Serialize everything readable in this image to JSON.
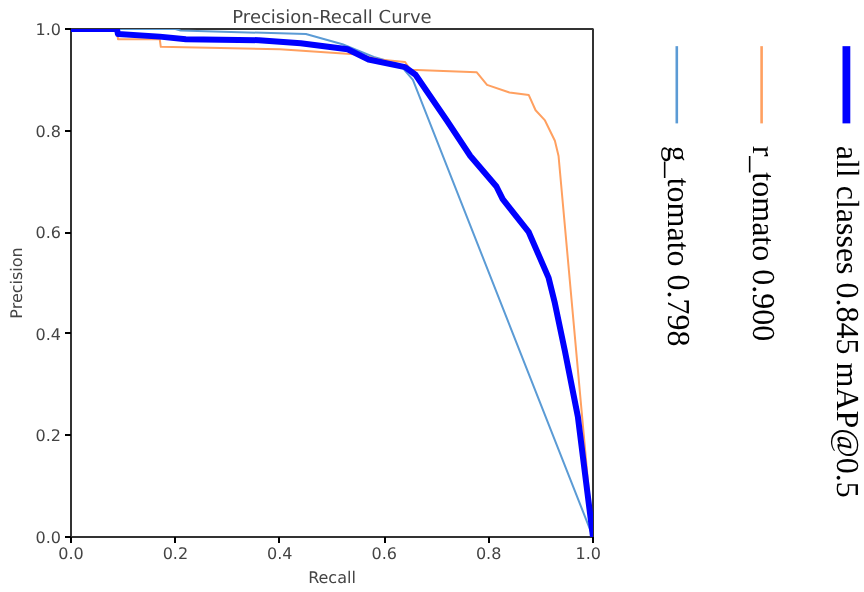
{
  "chart_data": {
    "type": "line",
    "title": "Precision-Recall Curve",
    "xlabel": "Recall",
    "ylabel": "Precision",
    "xlim": [
      0,
      1
    ],
    "ylim": [
      0,
      1
    ],
    "xticks": [
      {
        "value": 0,
        "label": "0.0"
      },
      {
        "value": 0.2,
        "label": "0.2"
      },
      {
        "value": 0.4,
        "label": "0.4"
      },
      {
        "value": 0.6,
        "label": "0.6"
      },
      {
        "value": 0.8,
        "label": "0.8"
      },
      {
        "value": 1,
        "label": "1.0"
      }
    ],
    "yticks": [
      {
        "value": 0,
        "label": "0.0"
      },
      {
        "value": 0.2,
        "label": "0.2"
      },
      {
        "value": 0.4,
        "label": "0.4"
      },
      {
        "value": 0.6,
        "label": "0.6"
      },
      {
        "value": 0.8,
        "label": "0.8"
      },
      {
        "value": 1,
        "label": "1.0"
      }
    ],
    "grid": false,
    "legend": "right",
    "marker": "none",
    "line_style": "solid",
    "series": [
      {
        "name": "all classes 0.845 mAP@0.5",
        "color": "#0000ff",
        "x": [
          0,
          0.088,
          0.09,
          0.17,
          0.22,
          0.36,
          0.44,
          0.53,
          0.57,
          0.64,
          0.66,
          0.72,
          0.765,
          0.815,
          0.827,
          0.877,
          0.915,
          0.927,
          0.946,
          0.971,
          1.0
        ],
        "values": [
          1,
          1,
          0.99,
          0.985,
          0.98,
          0.978,
          0.972,
          0.96,
          0.94,
          0.925,
          0.91,
          0.82,
          0.75,
          0.69,
          0.665,
          0.6,
          0.51,
          0.46,
          0.367,
          0.237,
          0
        ]
      },
      {
        "name": "r_tomato 0.900",
        "color": "#ffa060",
        "x": [
          0,
          0.088,
          0.09,
          0.17,
          0.172,
          0.4,
          0.55,
          0.59,
          0.64,
          0.65,
          0.777,
          0.797,
          0.84,
          0.877,
          0.89,
          0.908,
          0.927,
          0.934,
          1.0
        ],
        "values": [
          1,
          1,
          0.98,
          0.98,
          0.965,
          0.96,
          0.95,
          0.94,
          0.935,
          0.92,
          0.915,
          0.89,
          0.875,
          0.87,
          0.84,
          0.82,
          0.78,
          0.75,
          0
        ]
      },
      {
        "name": "g_tomato 0.798",
        "color": "#5b9bd5",
        "x": [
          0,
          0.2,
          0.21,
          0.45,
          0.52,
          0.58,
          0.63,
          0.655,
          1.0
        ],
        "values": [
          1,
          1,
          0.997,
          0.99,
          0.97,
          0.945,
          0.93,
          0.9,
          0
        ]
      }
    ]
  }
}
